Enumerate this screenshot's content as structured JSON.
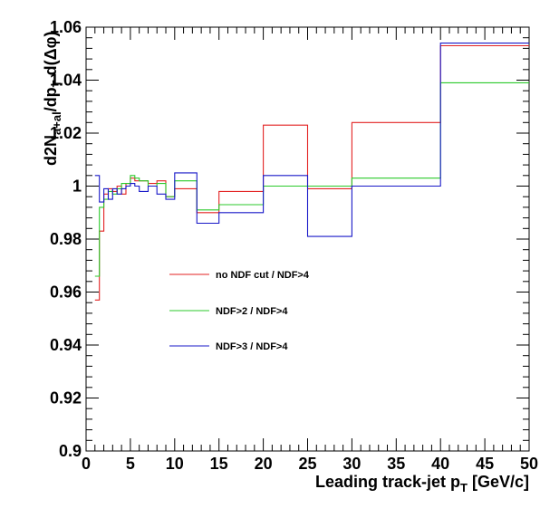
{
  "chart_data": {
    "type": "line",
    "xlabel": "Leading track-jet p",
    "xlabel_sub": "T",
    "xlabel_unit": " [GeV/c]",
    "ylabel": "d2N",
    "ylabel_sub": "a+al",
    "ylabel_rest": "/dp",
    "ylabel_sub2": "T",
    "ylabel_end": " d(Δφ)",
    "xlim": [
      0,
      50
    ],
    "ylim": [
      0.9,
      1.06
    ],
    "x_ticks": [
      "0",
      "5",
      "10",
      "15",
      "20",
      "25",
      "30",
      "35",
      "40",
      "45",
      "50"
    ],
    "y_ticks": [
      "0.9",
      "0.92",
      "0.94",
      "0.96",
      "0.98",
      "1",
      "1.02",
      "1.04",
      "1.06"
    ],
    "bin_edges": [
      1,
      1.5,
      2,
      2.5,
      3,
      3.5,
      4,
      4.5,
      5,
      5.5,
      6,
      7,
      8,
      9,
      10,
      12.5,
      15,
      20,
      25,
      30,
      40,
      50
    ],
    "series": [
      {
        "name": "no NDF cut / NDF>4",
        "color": "#e32222",
        "values": [
          0.957,
          0.983,
          0.997,
          0.999,
          0.998,
          1.0,
          0.997,
          1.001,
          1.003,
          1.002,
          1.002,
          1.001,
          1.002,
          0.996,
          0.999,
          0.99,
          0.998,
          1.023,
          0.999,
          1.024,
          1.053
        ]
      },
      {
        "name": "NDF>2 / NDF>4",
        "color": "#2bc92b",
        "values": [
          0.966,
          0.992,
          0.995,
          0.998,
          0.997,
          0.999,
          1.001,
          1.001,
          1.004,
          1.003,
          1.002,
          1.0,
          1.001,
          0.996,
          1.002,
          0.991,
          0.993,
          1.0,
          1.0,
          1.003,
          1.039
        ]
      },
      {
        "name": "NDF>3 / NDF>4",
        "color": "#1818c8",
        "values": [
          1.004,
          0.994,
          0.999,
          0.995,
          0.999,
          0.997,
          0.999,
          1.0,
          1.001,
          1.0,
          0.998,
          1.0,
          0.997,
          0.995,
          1.005,
          0.986,
          0.99,
          1.004,
          0.981,
          1.0,
          1.054
        ]
      }
    ]
  }
}
